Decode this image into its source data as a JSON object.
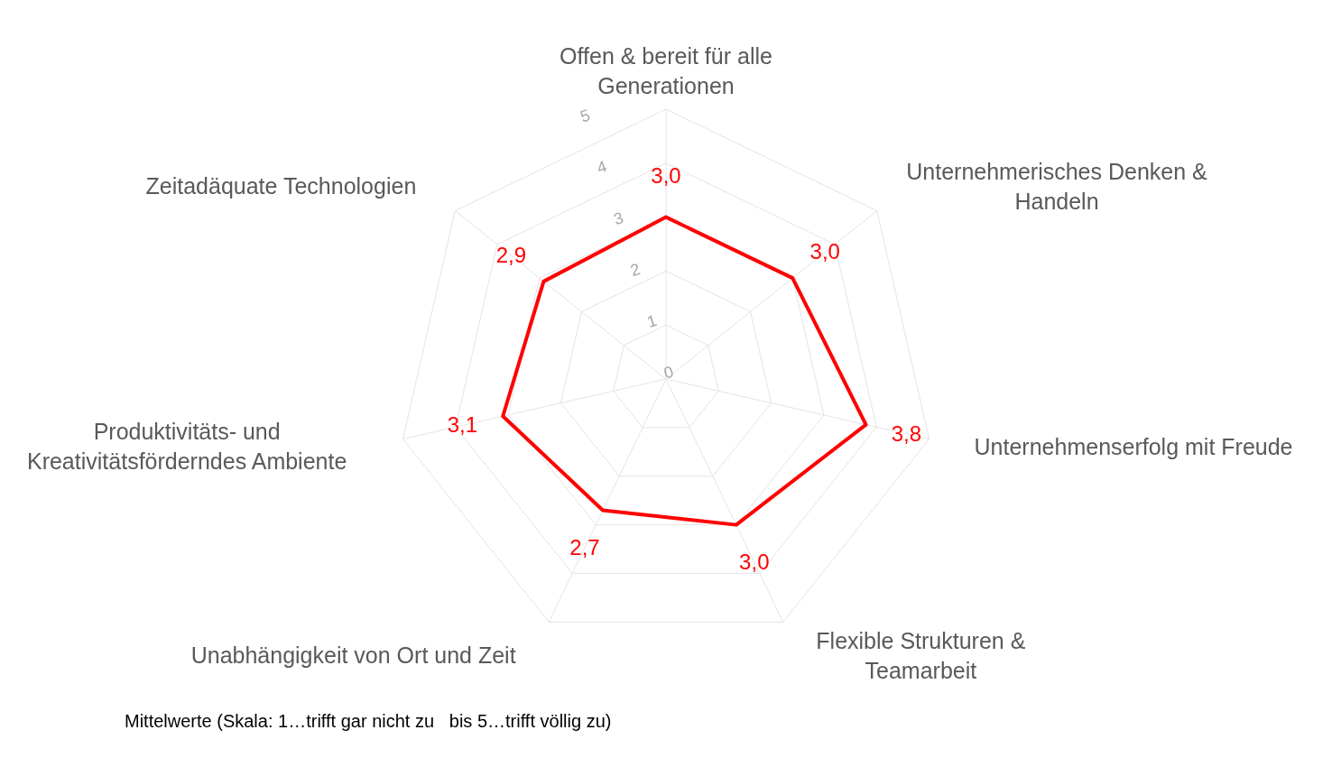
{
  "chart_data": {
    "type": "radar",
    "categories": [
      "Offen & bereit für alle Generationen",
      "Unternehmerisches Denken & Handeln",
      "Unternehmenserfolg mit Freude",
      "Flexible Strukturen & Teamarbeit",
      "Unabhängigkeit von Ort und Zeit",
      "Produktivitäts- und Kreativitätsförderndes Ambiente",
      "Zeitadäquate Technologien"
    ],
    "series": [
      {
        "color": "#ff0000",
        "values": [
          3.0,
          3.0,
          3.8,
          3.0,
          2.7,
          3.1,
          2.9
        ],
        "value_labels": [
          "3,0",
          "3,0",
          "3,8",
          "3,0",
          "2,7",
          "3,1",
          "2,9"
        ]
      }
    ],
    "ylim": [
      0,
      5
    ],
    "yticks": [
      0,
      1,
      2,
      3,
      4,
      5
    ],
    "grid": true,
    "marker": "none",
    "annotations": [
      "Mittelwerte (Skala: 1…trifft gar nicht zu   bis 5…trifft völlig zu)"
    ]
  }
}
